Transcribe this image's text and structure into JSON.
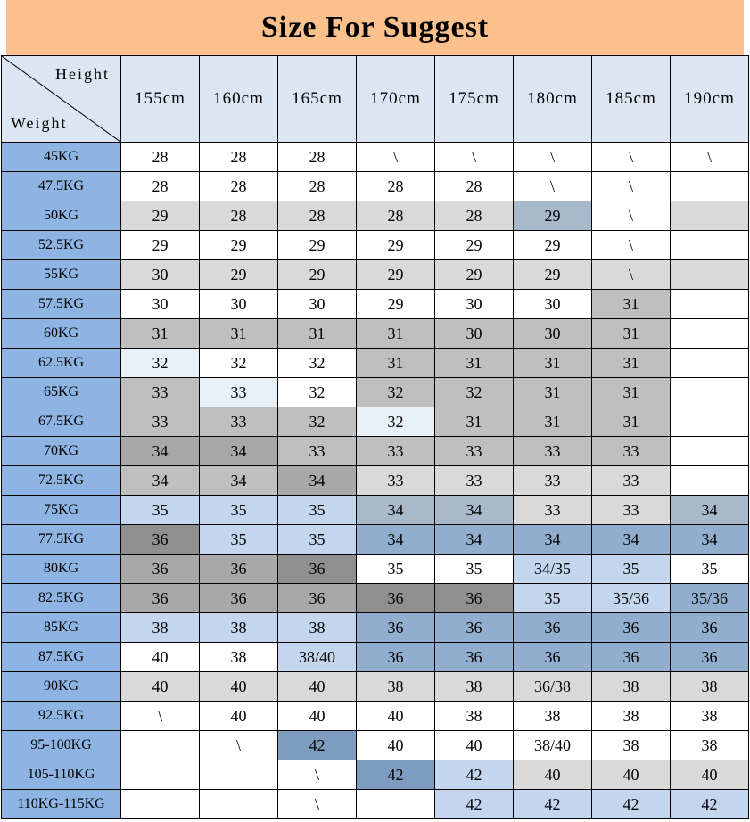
{
  "corner": {
    "top_label": "Height",
    "bottom_label": "Weight"
  },
  "theme": {
    "title_bg": "#fbc08c",
    "header_bg": "#dce6f2",
    "weight_col_bg": "#8db4e2",
    "border": "#000000",
    "text": "#000000"
  },
  "palette": {
    "w": "#ffffff",
    "g1": "#d9d9d9",
    "g2": "#bfbfbf",
    "g3": "#a8a8a8",
    "g4": "#8f8f8f",
    "gb": "#a7b9cb",
    "b1": "#e8f0f8",
    "b2": "#c3d6ee",
    "b3": "#92aecf",
    "b4": "#7e9cc0"
  },
  "chart_data": {
    "type": "table",
    "title": "Size For Suggest",
    "columns": [
      "155cm",
      "160cm",
      "165cm",
      "170cm",
      "175cm",
      "180cm",
      "185cm",
      "190cm"
    ],
    "row_labels": [
      "45KG",
      "47.5KG",
      "50KG",
      "52.5KG",
      "55KG",
      "57.5KG",
      "60KG",
      "62.5KG",
      "65KG",
      "67.5KG",
      "70KG",
      "72.5KG",
      "75KG",
      "77.5KG",
      "80KG",
      "82.5KG",
      "85KG",
      "87.5KG",
      "90KG",
      "92.5KG",
      "95-100KG",
      "105-110KG",
      "110KG-115KG"
    ],
    "values": [
      [
        "28",
        "28",
        "28",
        "\\",
        "\\",
        "\\",
        "\\",
        "\\"
      ],
      [
        "28",
        "28",
        "28",
        "28",
        "28",
        "\\",
        "\\",
        ""
      ],
      [
        "29",
        "28",
        "28",
        "28",
        "28",
        "29",
        "\\",
        ""
      ],
      [
        "29",
        "29",
        "29",
        "29",
        "29",
        "29",
        "\\",
        ""
      ],
      [
        "30",
        "29",
        "29",
        "29",
        "29",
        "29",
        "\\",
        ""
      ],
      [
        "30",
        "30",
        "30",
        "29",
        "30",
        "30",
        "31",
        ""
      ],
      [
        "31",
        "31",
        "31",
        "31",
        "30",
        "30",
        "31",
        ""
      ],
      [
        "32",
        "32",
        "32",
        "31",
        "31",
        "31",
        "31",
        ""
      ],
      [
        "33",
        "33",
        "32",
        "32",
        "32",
        "31",
        "31",
        ""
      ],
      [
        "33",
        "33",
        "32",
        "32",
        "31",
        "31",
        "31",
        ""
      ],
      [
        "34",
        "34",
        "33",
        "33",
        "33",
        "33",
        "33",
        ""
      ],
      [
        "34",
        "34",
        "34",
        "33",
        "33",
        "33",
        "33",
        ""
      ],
      [
        "35",
        "35",
        "35",
        "34",
        "34",
        "33",
        "33",
        "34"
      ],
      [
        "36",
        "35",
        "35",
        "34",
        "34",
        "34",
        "34",
        "34"
      ],
      [
        "36",
        "36",
        "36",
        "35",
        "35",
        "34/35",
        "35",
        "35"
      ],
      [
        "36",
        "36",
        "36",
        "36",
        "36",
        "35",
        "35/36",
        "35/36"
      ],
      [
        "38",
        "38",
        "38",
        "36",
        "36",
        "36",
        "36",
        "36"
      ],
      [
        "40",
        "38",
        "38/40",
        "36",
        "36",
        "36",
        "36",
        "36"
      ],
      [
        "40",
        "40",
        "40",
        "38",
        "38",
        "36/38",
        "38",
        "38"
      ],
      [
        "\\",
        "40",
        "40",
        "40",
        "38",
        "38",
        "38",
        "38"
      ],
      [
        "",
        "\\",
        "42",
        "40",
        "40",
        "38/40",
        "38",
        "38"
      ],
      [
        "",
        "",
        "\\",
        "42",
        "42",
        "40",
        "40",
        "40"
      ],
      [
        "",
        "",
        "\\",
        "",
        "42",
        "42",
        "42",
        "42"
      ]
    ]
  },
  "cell_colors": [
    [
      "w",
      "w",
      "w",
      "w",
      "w",
      "w",
      "w",
      "w"
    ],
    [
      "w",
      "w",
      "w",
      "w",
      "w",
      "w",
      "w",
      "w"
    ],
    [
      "g1",
      "g1",
      "g1",
      "g1",
      "g1",
      "gb",
      "w",
      "g1"
    ],
    [
      "w",
      "w",
      "w",
      "w",
      "w",
      "w",
      "w",
      "w"
    ],
    [
      "g1",
      "g1",
      "g1",
      "g1",
      "g1",
      "g1",
      "g1",
      "g1"
    ],
    [
      "w",
      "w",
      "w",
      "w",
      "w",
      "w",
      "g2",
      "w"
    ],
    [
      "g2",
      "g2",
      "g2",
      "g2",
      "g2",
      "g2",
      "g2",
      "w"
    ],
    [
      "b1",
      "w",
      "w",
      "g2",
      "g2",
      "g2",
      "g2",
      "w"
    ],
    [
      "g2",
      "b1",
      "w",
      "g2",
      "g2",
      "g2",
      "g2",
      "w"
    ],
    [
      "g2",
      "g2",
      "g2",
      "b1",
      "g2",
      "g2",
      "g2",
      "w"
    ],
    [
      "g3",
      "g3",
      "g2",
      "g2",
      "g2",
      "g2",
      "g2",
      "w"
    ],
    [
      "g2",
      "g2",
      "g3",
      "g1",
      "g1",
      "g1",
      "g1",
      "w"
    ],
    [
      "b2",
      "b2",
      "b2",
      "gb",
      "gb",
      "g1",
      "g1",
      "gb"
    ],
    [
      "g4",
      "b2",
      "b2",
      "b3",
      "b3",
      "b3",
      "b3",
      "b3"
    ],
    [
      "g3",
      "g3",
      "g4",
      "w",
      "w",
      "b2",
      "b2",
      "w"
    ],
    [
      "g3",
      "g3",
      "g3",
      "g4",
      "g4",
      "b2",
      "b2",
      "b3"
    ],
    [
      "b2",
      "b2",
      "b2",
      "b3",
      "b3",
      "b3",
      "b3",
      "b3"
    ],
    [
      "w",
      "w",
      "b2",
      "b3",
      "b3",
      "b3",
      "b3",
      "b3"
    ],
    [
      "g1",
      "g1",
      "g1",
      "g1",
      "g1",
      "g1",
      "g1",
      "g1"
    ],
    [
      "w",
      "w",
      "w",
      "w",
      "w",
      "w",
      "w",
      "w"
    ],
    [
      "w",
      "w",
      "b4",
      "w",
      "w",
      "w",
      "w",
      "w"
    ],
    [
      "w",
      "w",
      "w",
      "b4",
      "b2",
      "g1",
      "g1",
      "g1"
    ],
    [
      "w",
      "w",
      "w",
      "w",
      "b2",
      "b2",
      "b2",
      "b2"
    ]
  ]
}
